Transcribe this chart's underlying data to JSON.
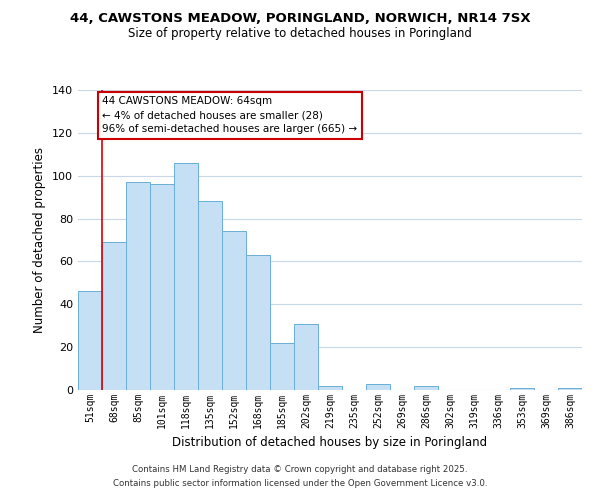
{
  "title1": "44, CAWSTONS MEADOW, PORINGLAND, NORWICH, NR14 7SX",
  "title2": "Size of property relative to detached houses in Poringland",
  "xlabel": "Distribution of detached houses by size in Poringland",
  "ylabel": "Number of detached properties",
  "categories": [
    "51sqm",
    "68sqm",
    "85sqm",
    "101sqm",
    "118sqm",
    "135sqm",
    "152sqm",
    "168sqm",
    "185sqm",
    "202sqm",
    "219sqm",
    "235sqm",
    "252sqm",
    "269sqm",
    "286sqm",
    "302sqm",
    "319sqm",
    "336sqm",
    "353sqm",
    "369sqm",
    "386sqm"
  ],
  "values": [
    46,
    69,
    97,
    96,
    106,
    88,
    74,
    63,
    22,
    31,
    2,
    0,
    3,
    0,
    2,
    0,
    0,
    0,
    1,
    0,
    1
  ],
  "bar_color": "#c5e0f5",
  "bar_edge_color": "#6aaed6",
  "vline_color": "#dd0000",
  "annotation_title": "44 CAWSTONS MEADOW: 64sqm",
  "annotation_line1": "← 4% of detached houses are smaller (28)",
  "annotation_line2": "96% of semi-detached houses are larger (665) →",
  "annotation_box_facecolor": "#ffffff",
  "annotation_box_edgecolor": "#cc0000",
  "ylim": [
    0,
    140
  ],
  "yticks": [
    0,
    20,
    40,
    60,
    80,
    100,
    120,
    140
  ],
  "footer1": "Contains HM Land Registry data © Crown copyright and database right 2025.",
  "footer2": "Contains public sector information licensed under the Open Government Licence v3.0.",
  "background_color": "#ffffff",
  "grid_color": "#c8d8e8"
}
